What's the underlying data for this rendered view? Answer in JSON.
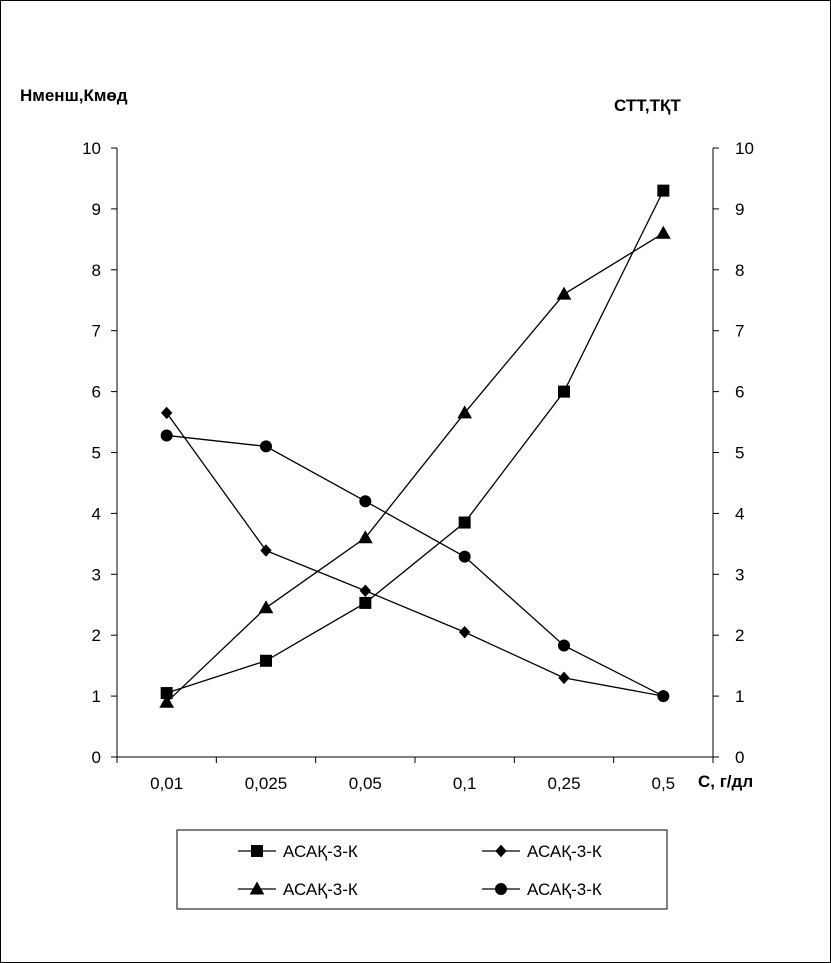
{
  "chart_data": {
    "type": "line",
    "categories": [
      "0,01",
      "0,025",
      "0,05",
      "0,1",
      "0,25",
      "0,5"
    ],
    "xlabel": "С, г/дл",
    "ylabel_left": "Нменш,Кмөд",
    "ylabel_right": "СТТ,ТҚТ",
    "ylim": [
      0,
      10
    ],
    "yticks": [
      "0",
      "1",
      "2",
      "3",
      "4",
      "5",
      "6",
      "7",
      "8",
      "9",
      "10"
    ],
    "grid": false,
    "legend_position": "bottom",
    "series": [
      {
        "name": "АСАҚ-3-К",
        "marker": "square",
        "values": [
          1.05,
          1.58,
          2.53,
          3.85,
          6.0,
          9.3
        ]
      },
      {
        "name": "АСАҚ-3-К",
        "marker": "diamond",
        "values": [
          5.65,
          3.39,
          2.73,
          2.05,
          1.3,
          1.0
        ]
      },
      {
        "name": "АСАҚ-3-К",
        "marker": "triangle",
        "values": [
          0.9,
          2.45,
          3.6,
          5.65,
          7.6,
          8.6
        ]
      },
      {
        "name": "АСАҚ-3-К",
        "marker": "circle",
        "values": [
          5.28,
          5.1,
          4.2,
          3.29,
          1.83,
          1.0
        ]
      }
    ],
    "line_color": "#000000"
  }
}
